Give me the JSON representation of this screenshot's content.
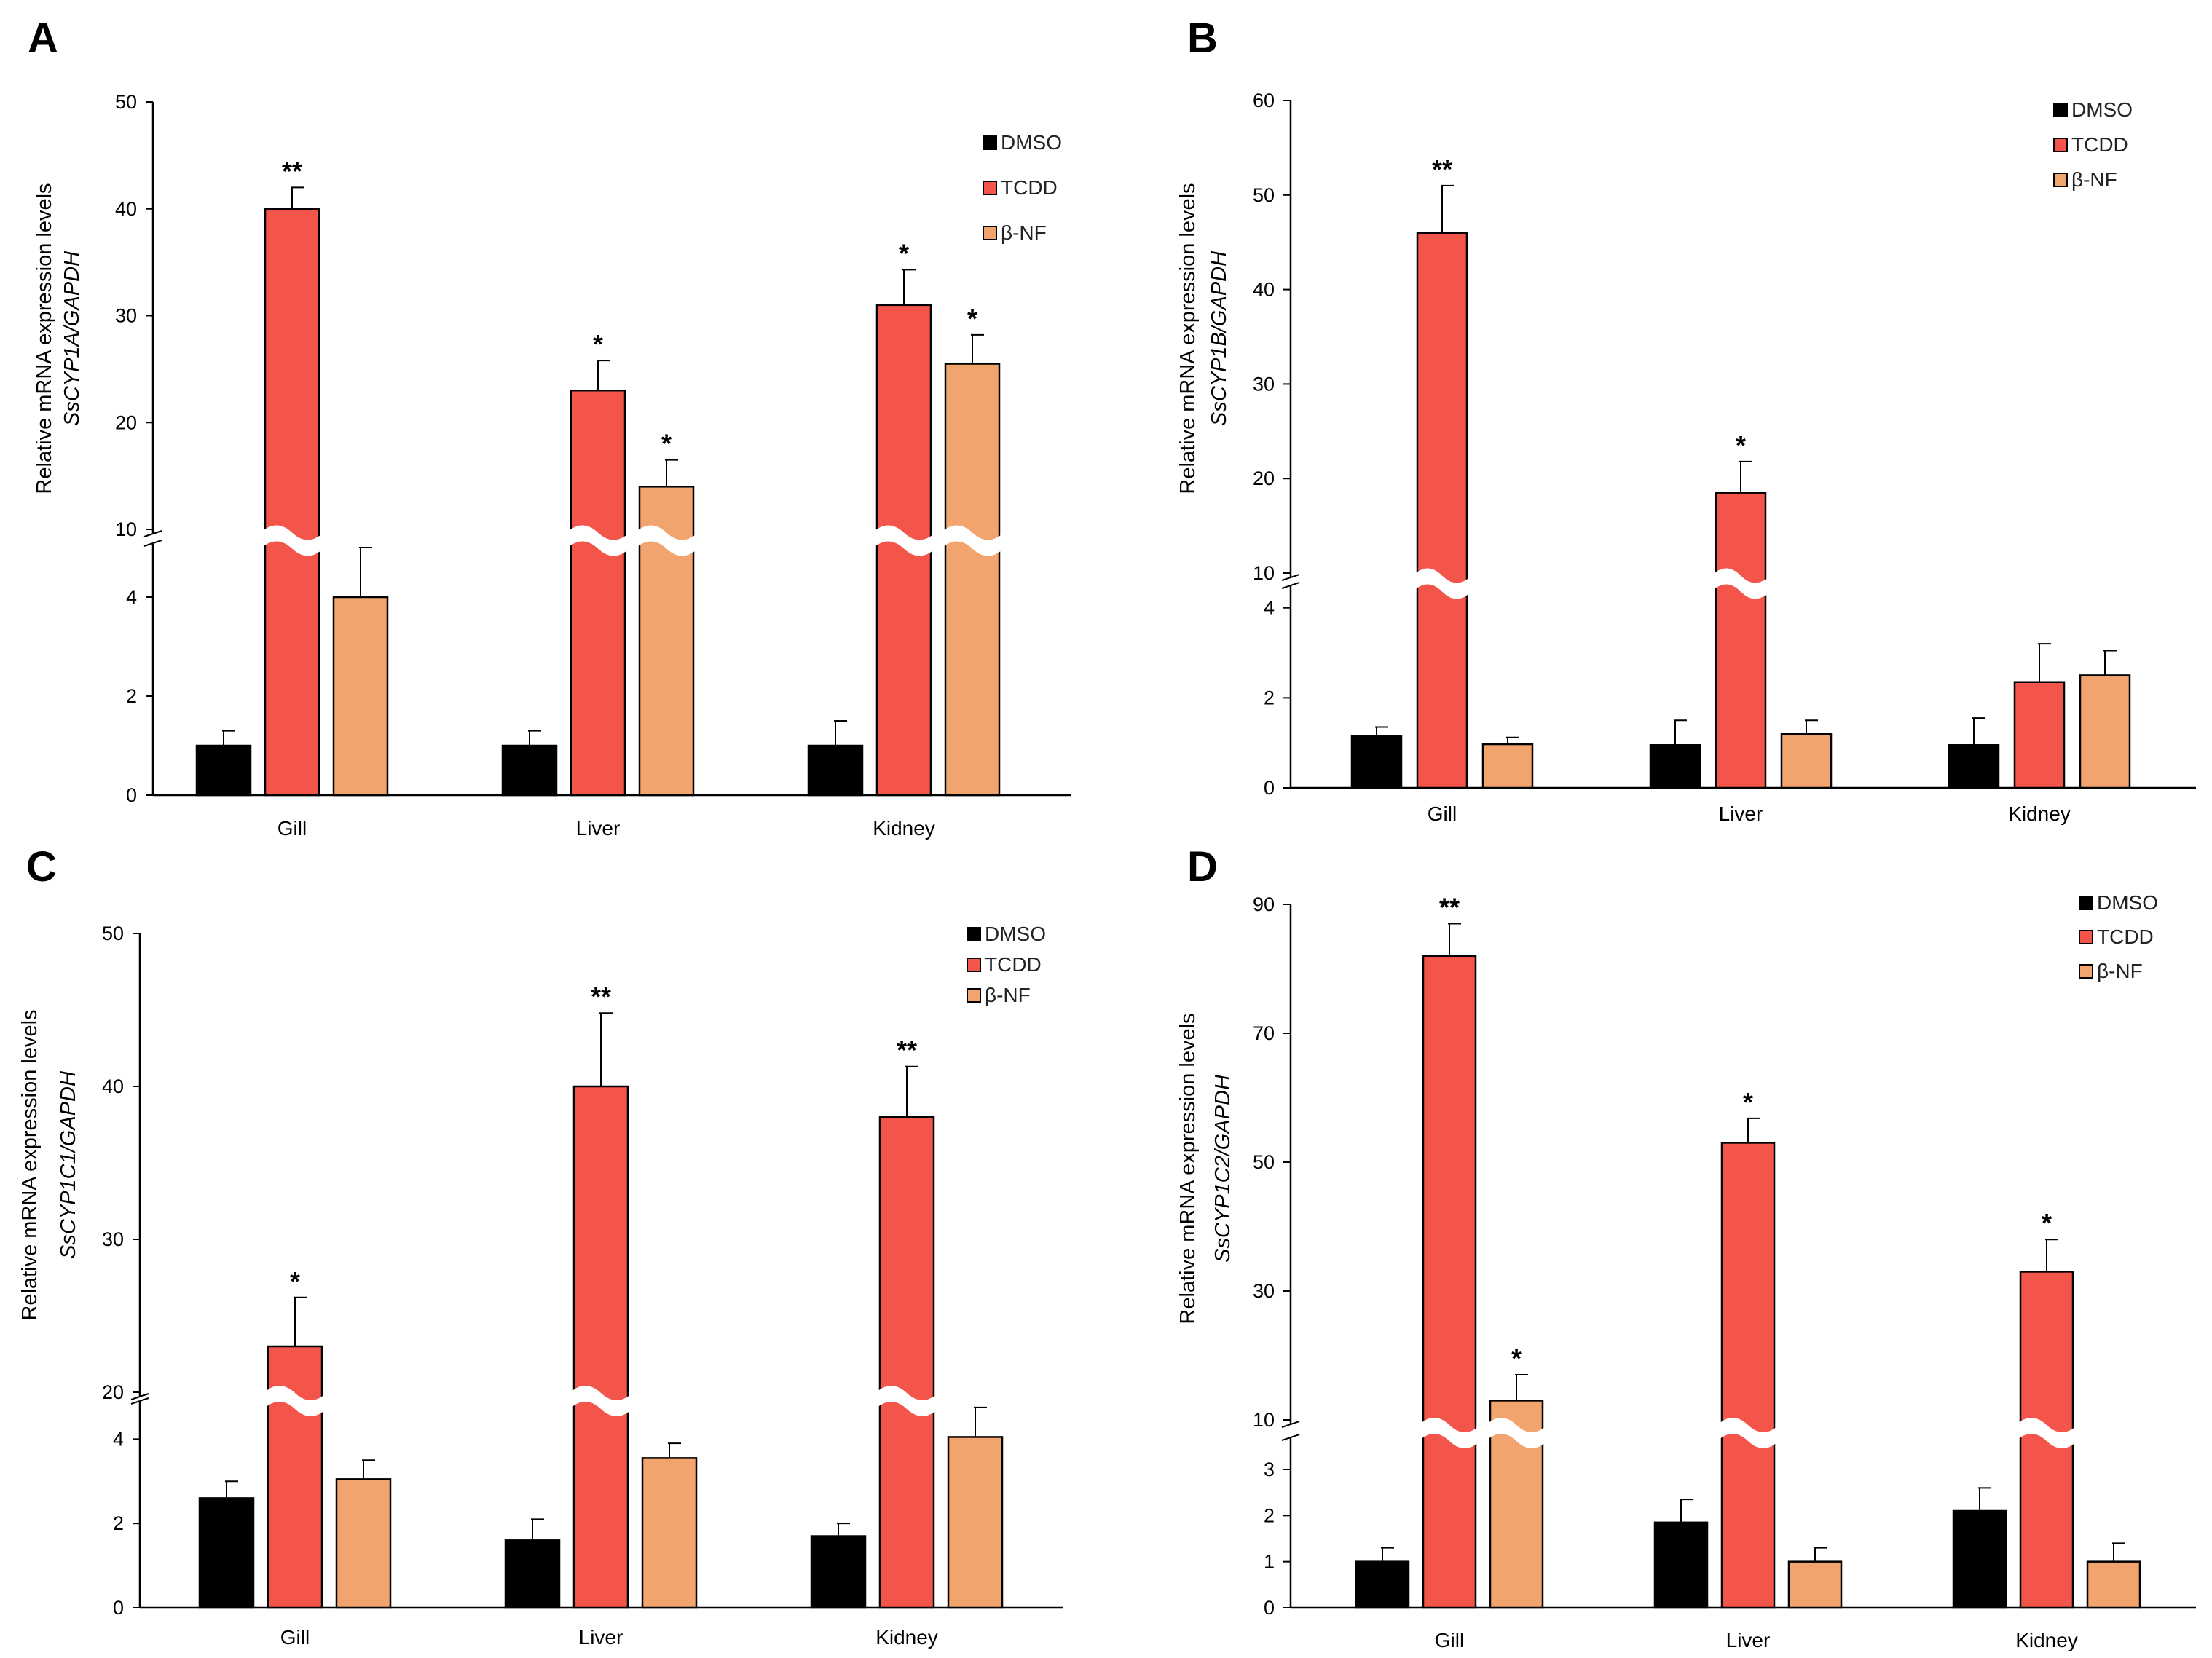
{
  "colors": {
    "DMSO": "#000000",
    "TCDD": "#f4554b",
    "β-NF": "#f2a46e"
  },
  "chart_data": [
    {
      "panel": "A",
      "type": "bar",
      "ylabel_line1": "Relative mRNA expression levels",
      "ylabel_line2": "SsCYP1A/GAPDH",
      "categories": [
        "Gill",
        "Liver",
        "Kidney"
      ],
      "legend": [
        "DMSO",
        "TCDD",
        "β-NF"
      ],
      "series": [
        {
          "name": "DMSO",
          "values": [
            1,
            1,
            1
          ],
          "errors": [
            0.3,
            0.3,
            0.5
          ],
          "sig": [
            "",
            "",
            ""
          ]
        },
        {
          "name": "TCDD",
          "values": [
            40,
            23,
            31
          ],
          "errors": [
            2,
            2.8,
            3.3
          ],
          "sig": [
            "**",
            "*",
            "*"
          ]
        },
        {
          "name": "β-NF",
          "values": [
            4,
            14,
            25.5
          ],
          "errors": [
            1,
            2.5,
            2.7
          ],
          "sig": [
            "",
            "*",
            "*"
          ]
        }
      ],
      "y_axis_break": {
        "lower_ticks": [
          0,
          2,
          4
        ],
        "upper_ticks": [
          10,
          20,
          30,
          40,
          50
        ],
        "lower_max": 5,
        "upper_min": 10,
        "upper_max": 50
      }
    },
    {
      "panel": "B",
      "type": "bar",
      "ylabel_line1": "Relative mRNA expression levels",
      "ylabel_line2": "SsCYP1B/GAPDH",
      "categories": [
        "Gill",
        "Liver",
        "Kidney"
      ],
      "legend": [
        "DMSO",
        "TCDD",
        "β-NF"
      ],
      "series": [
        {
          "name": "DMSO",
          "values": [
            1.15,
            0.95,
            0.95
          ],
          "errors": [
            0.2,
            0.55,
            0.6
          ],
          "sig": [
            "",
            "",
            ""
          ]
        },
        {
          "name": "TCDD",
          "values": [
            46,
            18.5,
            2.35
          ],
          "errors": [
            5,
            3.3,
            0.85
          ],
          "sig": [
            "**",
            "*",
            ""
          ]
        },
        {
          "name": "β-NF",
          "values": [
            0.97,
            1.2,
            2.5
          ],
          "errors": [
            0.15,
            0.3,
            0.55
          ],
          "sig": [
            "",
            "",
            ""
          ]
        }
      ],
      "y_axis_break": {
        "lower_ticks": [
          0,
          2,
          4
        ],
        "upper_ticks": [
          10,
          20,
          30,
          40,
          50,
          60
        ],
        "lower_max": 4.4,
        "upper_min": 10,
        "upper_max": 60
      }
    },
    {
      "panel": "C",
      "type": "bar",
      "ylabel_line1": "Relative mRNA expression levels",
      "ylabel_line2": "SsCYP1C1/GAPDH",
      "categories": [
        "Gill",
        "Liver",
        "Kidney"
      ],
      "legend": [
        "DMSO",
        "TCDD",
        "β-NF"
      ],
      "series": [
        {
          "name": "DMSO",
          "values": [
            2.6,
            1.6,
            1.7
          ],
          "errors": [
            0.4,
            0.5,
            0.3
          ],
          "sig": [
            "",
            "",
            ""
          ]
        },
        {
          "name": "TCDD",
          "values": [
            23,
            40,
            38
          ],
          "errors": [
            3.2,
            4.8,
            3.3
          ],
          "sig": [
            "*",
            "**",
            "**"
          ]
        },
        {
          "name": "β-NF",
          "values": [
            3.05,
            3.55,
            4.05
          ],
          "errors": [
            0.45,
            0.35,
            0.7
          ],
          "sig": [
            "",
            "",
            ""
          ]
        }
      ],
      "y_axis_break": {
        "lower_ticks": [
          0,
          2,
          4
        ],
        "upper_ticks": [
          20,
          30,
          40,
          50
        ],
        "lower_max": 4.8,
        "upper_min": 20,
        "upper_max": 50
      }
    },
    {
      "panel": "D",
      "type": "bar",
      "ylabel_line1": "Relative mRNA expression levels",
      "ylabel_line2": "SsCYP1C2/GAPDH",
      "categories": [
        "Gill",
        "Liver",
        "Kidney"
      ],
      "legend": [
        "DMSO",
        "TCDD",
        "β-NF"
      ],
      "series": [
        {
          "name": "DMSO",
          "values": [
            1,
            1.85,
            2.1
          ],
          "errors": [
            0.3,
            0.5,
            0.5
          ],
          "sig": [
            "",
            "",
            ""
          ]
        },
        {
          "name": "TCDD",
          "values": [
            82,
            53,
            33
          ],
          "errors": [
            5,
            3.8,
            5
          ],
          "sig": [
            "**",
            "*",
            "*"
          ]
        },
        {
          "name": "β-NF",
          "values": [
            13,
            1,
            1
          ],
          "errors": [
            4,
            0.3,
            0.4
          ],
          "sig": [
            "*",
            "",
            ""
          ]
        }
      ],
      "y_axis_break": {
        "lower_ticks": [
          0,
          1,
          2,
          3
        ],
        "upper_ticks": [
          10,
          30,
          50,
          70,
          90
        ],
        "lower_max": 3.6,
        "upper_min": 10,
        "upper_max": 90
      }
    }
  ]
}
